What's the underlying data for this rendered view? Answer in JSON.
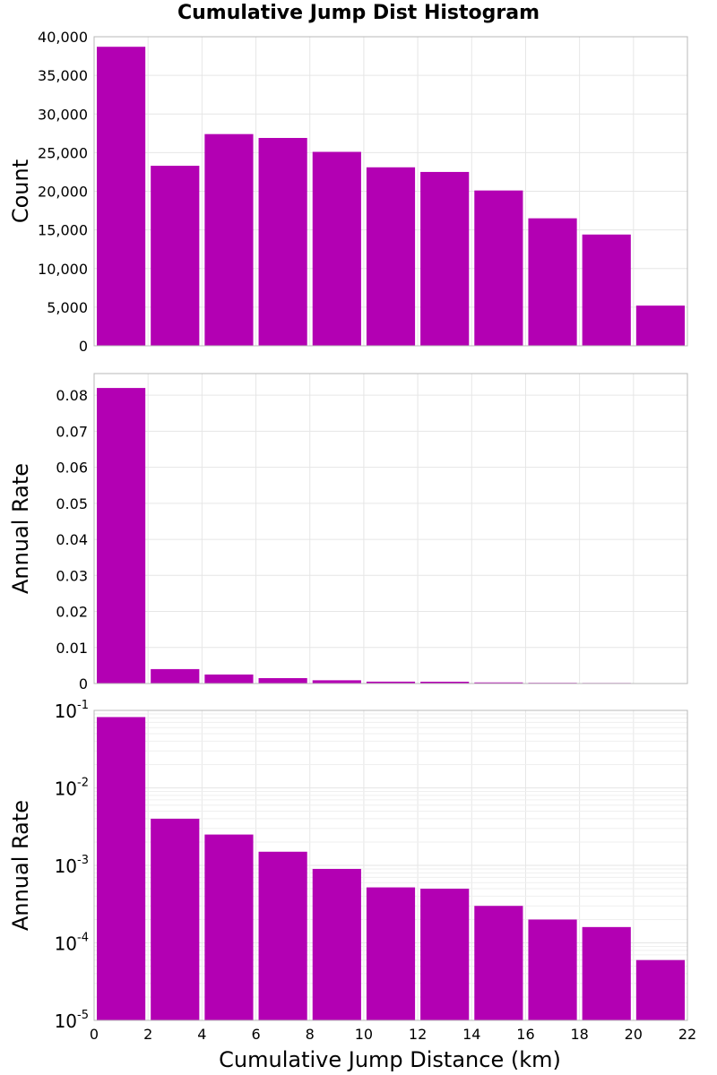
{
  "chart_data": {
    "title": "Cumulative Jump Dist Histogram",
    "xlabel": "Cumulative Jump Distance (km)",
    "xlim": [
      0,
      22
    ],
    "x_ticks": [
      "0",
      "2",
      "4",
      "6",
      "8",
      "10",
      "12",
      "14",
      "16",
      "18",
      "20",
      "22"
    ],
    "bar_color": "#b300b3",
    "bin_edges": [
      0,
      2,
      4,
      6,
      8,
      10,
      12,
      14,
      16,
      18,
      20,
      22
    ],
    "panels": [
      {
        "type": "bar",
        "ylabel": "Count",
        "scale": "linear",
        "ylim": [
          0,
          40000
        ],
        "y_ticks": [
          "0",
          "5,000",
          "10,000",
          "15,000",
          "20,000",
          "25,000",
          "30,000",
          "35,000",
          "40,000"
        ],
        "y_tick_values": [
          0,
          5000,
          10000,
          15000,
          20000,
          25000,
          30000,
          35000,
          40000
        ],
        "values": [
          38700,
          23300,
          27400,
          26900,
          25100,
          23100,
          22500,
          20100,
          16500,
          14400,
          5200
        ]
      },
      {
        "type": "bar",
        "ylabel": "Annual Rate",
        "scale": "linear",
        "ylim": [
          0,
          0.086
        ],
        "y_ticks": [
          "0",
          "0.01",
          "0.02",
          "0.03",
          "0.04",
          "0.05",
          "0.06",
          "0.07",
          "0.08"
        ],
        "y_tick_values": [
          0,
          0.01,
          0.02,
          0.03,
          0.04,
          0.05,
          0.06,
          0.07,
          0.08
        ],
        "values": [
          0.082,
          0.004,
          0.0025,
          0.0015,
          0.0009,
          0.00052,
          0.0005,
          0.0003,
          0.0002,
          0.00016,
          6e-05
        ]
      },
      {
        "type": "bar",
        "ylabel": "Annual Rate",
        "scale": "log",
        "ylim": [
          1e-05,
          0.1
        ],
        "y_ticks": [
          {
            "base": "10",
            "exp": "-1"
          },
          {
            "base": "10",
            "exp": "-2"
          },
          {
            "base": "10",
            "exp": "-3"
          },
          {
            "base": "10",
            "exp": "-4"
          },
          {
            "base": "10",
            "exp": "-5"
          }
        ],
        "y_tick_values": [
          0.1,
          0.01,
          0.001,
          0.0001,
          1e-05
        ],
        "values": [
          0.082,
          0.004,
          0.0025,
          0.0015,
          0.0009,
          0.00052,
          0.0005,
          0.0003,
          0.0002,
          0.00016,
          6e-05
        ]
      }
    ]
  }
}
